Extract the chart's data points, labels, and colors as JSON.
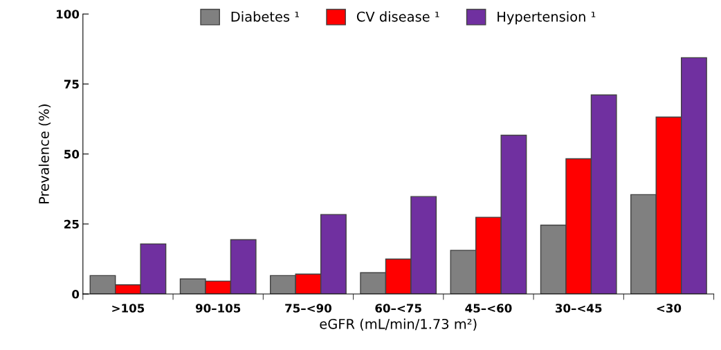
{
  "chart_data": {
    "type": "bar",
    "xlabel": "eGFR (mL/min/1.73 m²)",
    "ylabel": "Prevalence (%)",
    "categories": [
      ">105",
      "90–105",
      "75–<90",
      "60–<75",
      "45–<60",
      "30–<45",
      "<30"
    ],
    "series": [
      {
        "name": "Diabetes ¹",
        "color": "#808080",
        "values": [
          6.6,
          5.4,
          6.6,
          7.6,
          15.6,
          24.6,
          35.5
        ]
      },
      {
        "name": "CV disease ¹",
        "color": "#ff0000",
        "values": [
          3.3,
          4.6,
          7.1,
          12.5,
          27.4,
          48.3,
          63.2
        ]
      },
      {
        "name": "Hypertension ¹",
        "color": "#7030a0",
        "values": [
          17.9,
          19.4,
          28.4,
          34.8,
          56.7,
          71.1,
          84.4
        ]
      }
    ],
    "ylim": [
      0,
      100
    ],
    "yticks": [
      0,
      25,
      50,
      75,
      100
    ],
    "grid": false,
    "legend": "top"
  }
}
